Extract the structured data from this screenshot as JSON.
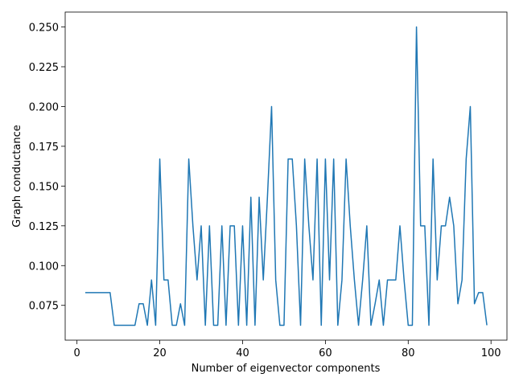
{
  "chart_data": {
    "type": "line",
    "xlabel": "Number of eigenvector components",
    "ylabel": "Graph conductance",
    "x": [
      2,
      3,
      4,
      5,
      6,
      7,
      8,
      9,
      10,
      11,
      12,
      13,
      14,
      15,
      16,
      17,
      18,
      19,
      20,
      21,
      22,
      23,
      24,
      25,
      26,
      27,
      28,
      29,
      30,
      31,
      32,
      33,
      34,
      35,
      36,
      37,
      38,
      39,
      40,
      41,
      42,
      43,
      44,
      45,
      46,
      47,
      48,
      49,
      50,
      51,
      52,
      53,
      54,
      55,
      56,
      57,
      58,
      59,
      60,
      61,
      62,
      63,
      64,
      65,
      66,
      67,
      68,
      69,
      70,
      71,
      72,
      73,
      74,
      75,
      76,
      77,
      78,
      79,
      80,
      81,
      82,
      83,
      84,
      85,
      86,
      87,
      88,
      89,
      90,
      91,
      92,
      93,
      94,
      95,
      96,
      97,
      98,
      99
    ],
    "series": [
      {
        "name": "conductance",
        "color": "#1f77b4",
        "values": [
          0.083,
          0.083,
          0.083,
          0.083,
          0.083,
          0.083,
          0.083,
          0.0625,
          0.0625,
          0.0625,
          0.0625,
          0.0625,
          0.0625,
          0.076,
          0.076,
          0.0625,
          0.091,
          0.0625,
          0.167,
          0.091,
          0.091,
          0.0625,
          0.0625,
          0.076,
          0.0625,
          0.167,
          0.125,
          0.091,
          0.125,
          0.0625,
          0.125,
          0.0625,
          0.0625,
          0.125,
          0.0625,
          0.125,
          0.125,
          0.0625,
          0.125,
          0.0625,
          0.143,
          0.0625,
          0.143,
          0.091,
          0.143,
          0.2,
          0.091,
          0.0625,
          0.0625,
          0.167,
          0.167,
          0.125,
          0.0625,
          0.167,
          0.125,
          0.091,
          0.167,
          0.0625,
          0.167,
          0.091,
          0.167,
          0.0625,
          0.091,
          0.167,
          0.125,
          0.091,
          0.0625,
          0.091,
          0.125,
          0.0625,
          0.076,
          0.091,
          0.0625,
          0.091,
          0.091,
          0.091,
          0.125,
          0.091,
          0.0625,
          0.0625,
          0.25,
          0.125,
          0.125,
          0.0625,
          0.167,
          0.091,
          0.125,
          0.125,
          0.143,
          0.125,
          0.076,
          0.091,
          0.167,
          0.2,
          0.076,
          0.083,
          0.083,
          0.0625
        ]
      }
    ],
    "xlim": [
      -2.85,
      103.85
    ],
    "ylim": [
      0.053125,
      0.259375
    ],
    "xticks": [
      0,
      20,
      40,
      60,
      80,
      100
    ],
    "yticks": [
      0.075,
      {
        "value": 0.1,
        "label": "0.100"
      },
      0.125,
      {
        "value": 0.15,
        "label": "0.150"
      },
      0.175,
      {
        "value": 0.2,
        "label": "0.200"
      },
      0.225,
      {
        "value": 0.25,
        "label": "0.250"
      }
    ],
    "grid": false
  }
}
